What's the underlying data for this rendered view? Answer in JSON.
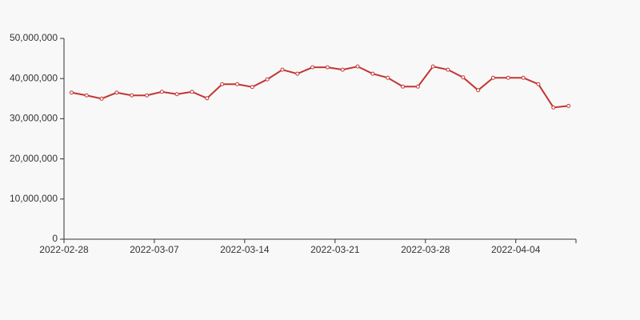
{
  "chart_data": {
    "type": "line",
    "categories": [
      "2022-02-28",
      null,
      null,
      null,
      null,
      null,
      "2022-03-07",
      null,
      null,
      null,
      null,
      null,
      "2022-03-14",
      null,
      null,
      null,
      null,
      null,
      "2022-03-21",
      null,
      null,
      null,
      null,
      null,
      "2022-03-28",
      null,
      null,
      null,
      null,
      null,
      "2022-04-04",
      null,
      null,
      null
    ],
    "series": [
      {
        "color": "#c23531",
        "values": [
          36500000,
          35800000,
          35000000,
          36500000,
          35800000,
          35800000,
          36700000,
          36100000,
          36700000,
          35100000,
          38600000,
          38600000,
          37900000,
          39800000,
          42200000,
          41200000,
          42800000,
          42800000,
          42200000,
          43000000,
          41200000,
          40200000,
          38000000,
          38000000,
          43000000,
          42200000,
          40300000,
          37100000,
          40200000,
          40200000,
          40200000,
          38600000,
          32800000,
          33200000
        ]
      }
    ],
    "ylim": [
      0,
      50000000
    ],
    "yticks": [
      0,
      {
        "value": 10000000,
        "label": "10,000,000"
      },
      {
        "value": 20000000,
        "label": "20,000,000"
      },
      {
        "value": 30000000,
        "label": "30,000,000"
      },
      {
        "value": 40000000,
        "label": "40,000,000"
      },
      {
        "value": 50000000,
        "label": "50,000,000"
      }
    ],
    "grid": false
  }
}
